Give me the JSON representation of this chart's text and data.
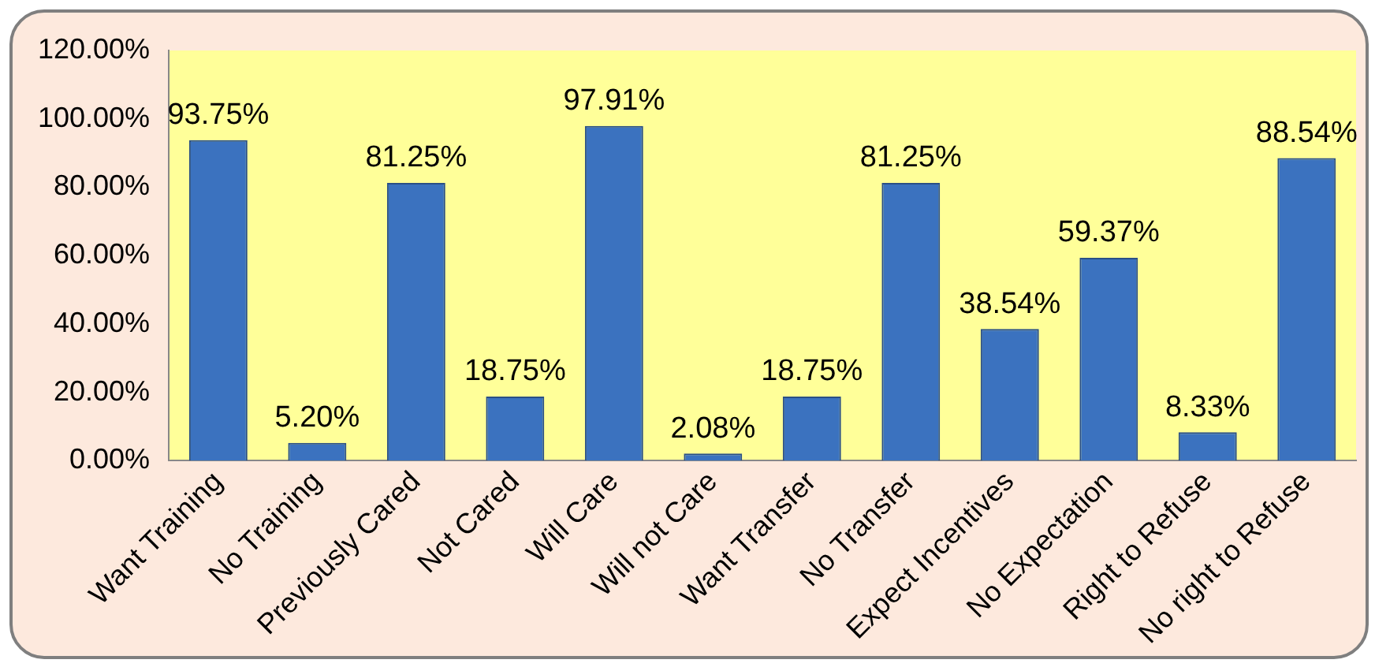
{
  "chart_data": {
    "type": "bar",
    "categories": [
      "Want Training",
      "No Training",
      "Previously Cared",
      "Not Cared",
      "Will Care",
      "Will not Care",
      "Want Transfer",
      "No Transfer",
      "Expect Incentives",
      "No Expectation",
      "Right to Refuse",
      "No right to Refuse"
    ],
    "values": [
      93.75,
      5.2,
      81.25,
      18.75,
      97.91,
      2.08,
      18.75,
      81.25,
      38.54,
      59.37,
      8.33,
      88.54
    ],
    "value_labels": [
      "93.75%",
      "5.20%",
      "81.25%",
      "18.75%",
      "97.91%",
      "2.08%",
      "18.75%",
      "81.25%",
      "38.54%",
      "59.37%",
      "8.33%",
      "88.54%"
    ],
    "color": "#3b72bf",
    "ylim": [
      0,
      120
    ],
    "yticks": [
      {
        "value": 0,
        "label": "0.00%"
      },
      {
        "value": 20,
        "label": "20.00%"
      },
      {
        "value": 40,
        "label": "40.00%"
      },
      {
        "value": 60,
        "label": "60.00%"
      },
      {
        "value": 80,
        "label": "80.00%"
      },
      {
        "value": 100,
        "label": "100.00%"
      },
      {
        "value": 120,
        "label": "120.00%"
      }
    ],
    "grid": false,
    "legend": false
  }
}
